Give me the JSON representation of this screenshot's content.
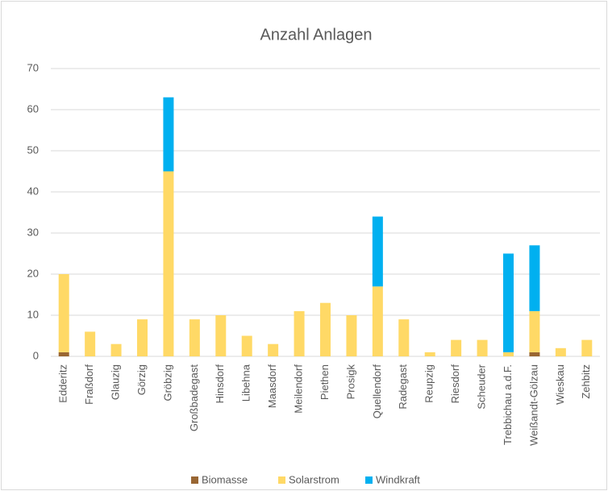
{
  "chart_data": {
    "type": "stacked_bar",
    "title": "Anzahl Anlagen",
    "categories": [
      "Edderitz",
      "Fraßdorf",
      "Glauzig",
      "Görzig",
      "Gröbzig",
      "Großbadegast",
      "Hinsdorf",
      "Libehna",
      "Maasdorf",
      "Meilendorf",
      "Piethen",
      "Prosigk",
      "Quellendorf",
      "Radegast",
      "Reupzig",
      "Riesdorf",
      "Scheuder",
      "Trebbichau a.d.F.",
      "Weißandt-Gölzau",
      "Wieskau",
      "Zehbitz"
    ],
    "series": [
      {
        "name": "Biomasse",
        "color": "#996633",
        "values": [
          1,
          0,
          0,
          0,
          0,
          0,
          0,
          0,
          0,
          0,
          0,
          0,
          0,
          0,
          0,
          0,
          0,
          0,
          1,
          0,
          0
        ]
      },
      {
        "name": "Solarstrom",
        "color": "#FFD966",
        "values": [
          19,
          6,
          3,
          9,
          45,
          9,
          10,
          5,
          3,
          11,
          13,
          10,
          17,
          9,
          1,
          4,
          4,
          1,
          10,
          2,
          4
        ]
      },
      {
        "name": "Windkraft",
        "color": "#00B0F0",
        "values": [
          0,
          0,
          0,
          0,
          18,
          0,
          0,
          0,
          0,
          0,
          0,
          0,
          17,
          0,
          0,
          0,
          0,
          24,
          16,
          0,
          0
        ]
      }
    ],
    "ylim": [
      0,
      70
    ],
    "yticks": [
      0,
      10,
      20,
      30,
      40,
      50,
      60,
      70
    ],
    "grid": true,
    "legend": "bottom"
  }
}
